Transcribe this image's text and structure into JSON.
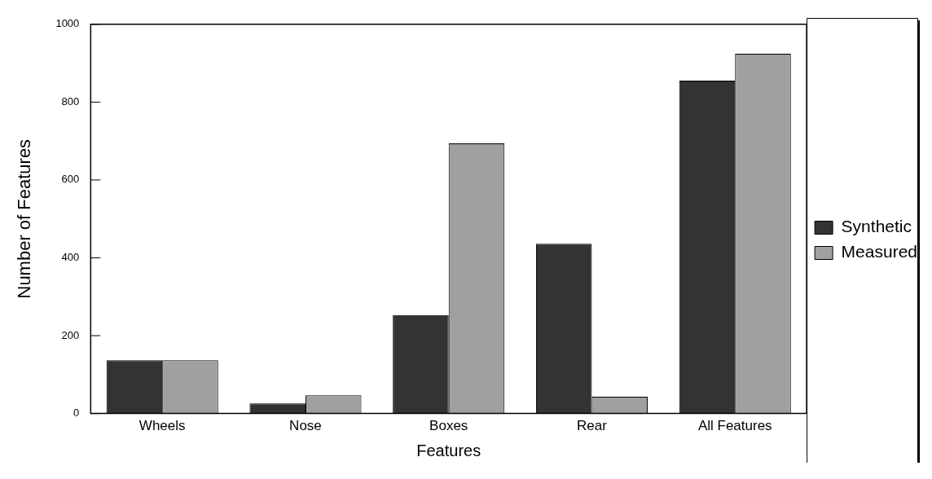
{
  "chart_data": {
    "type": "bar",
    "xlabel": "Features",
    "ylabel": "Number of Features",
    "categories": [
      "Wheels",
      "Nose",
      "Boxes",
      "Rear",
      "All Features"
    ],
    "series": [
      {
        "name": "Synthetic",
        "color": "#333333",
        "values": [
          137,
          26,
          253,
          436,
          855
        ]
      },
      {
        "name": "Measured",
        "color": "#a0a0a0",
        "values": [
          137,
          47,
          694,
          43,
          924
        ]
      }
    ],
    "ylim": [
      0,
      1000
    ],
    "yticks": [
      0,
      200,
      400,
      600,
      800,
      1000
    ],
    "grid": false,
    "legend": "right"
  }
}
